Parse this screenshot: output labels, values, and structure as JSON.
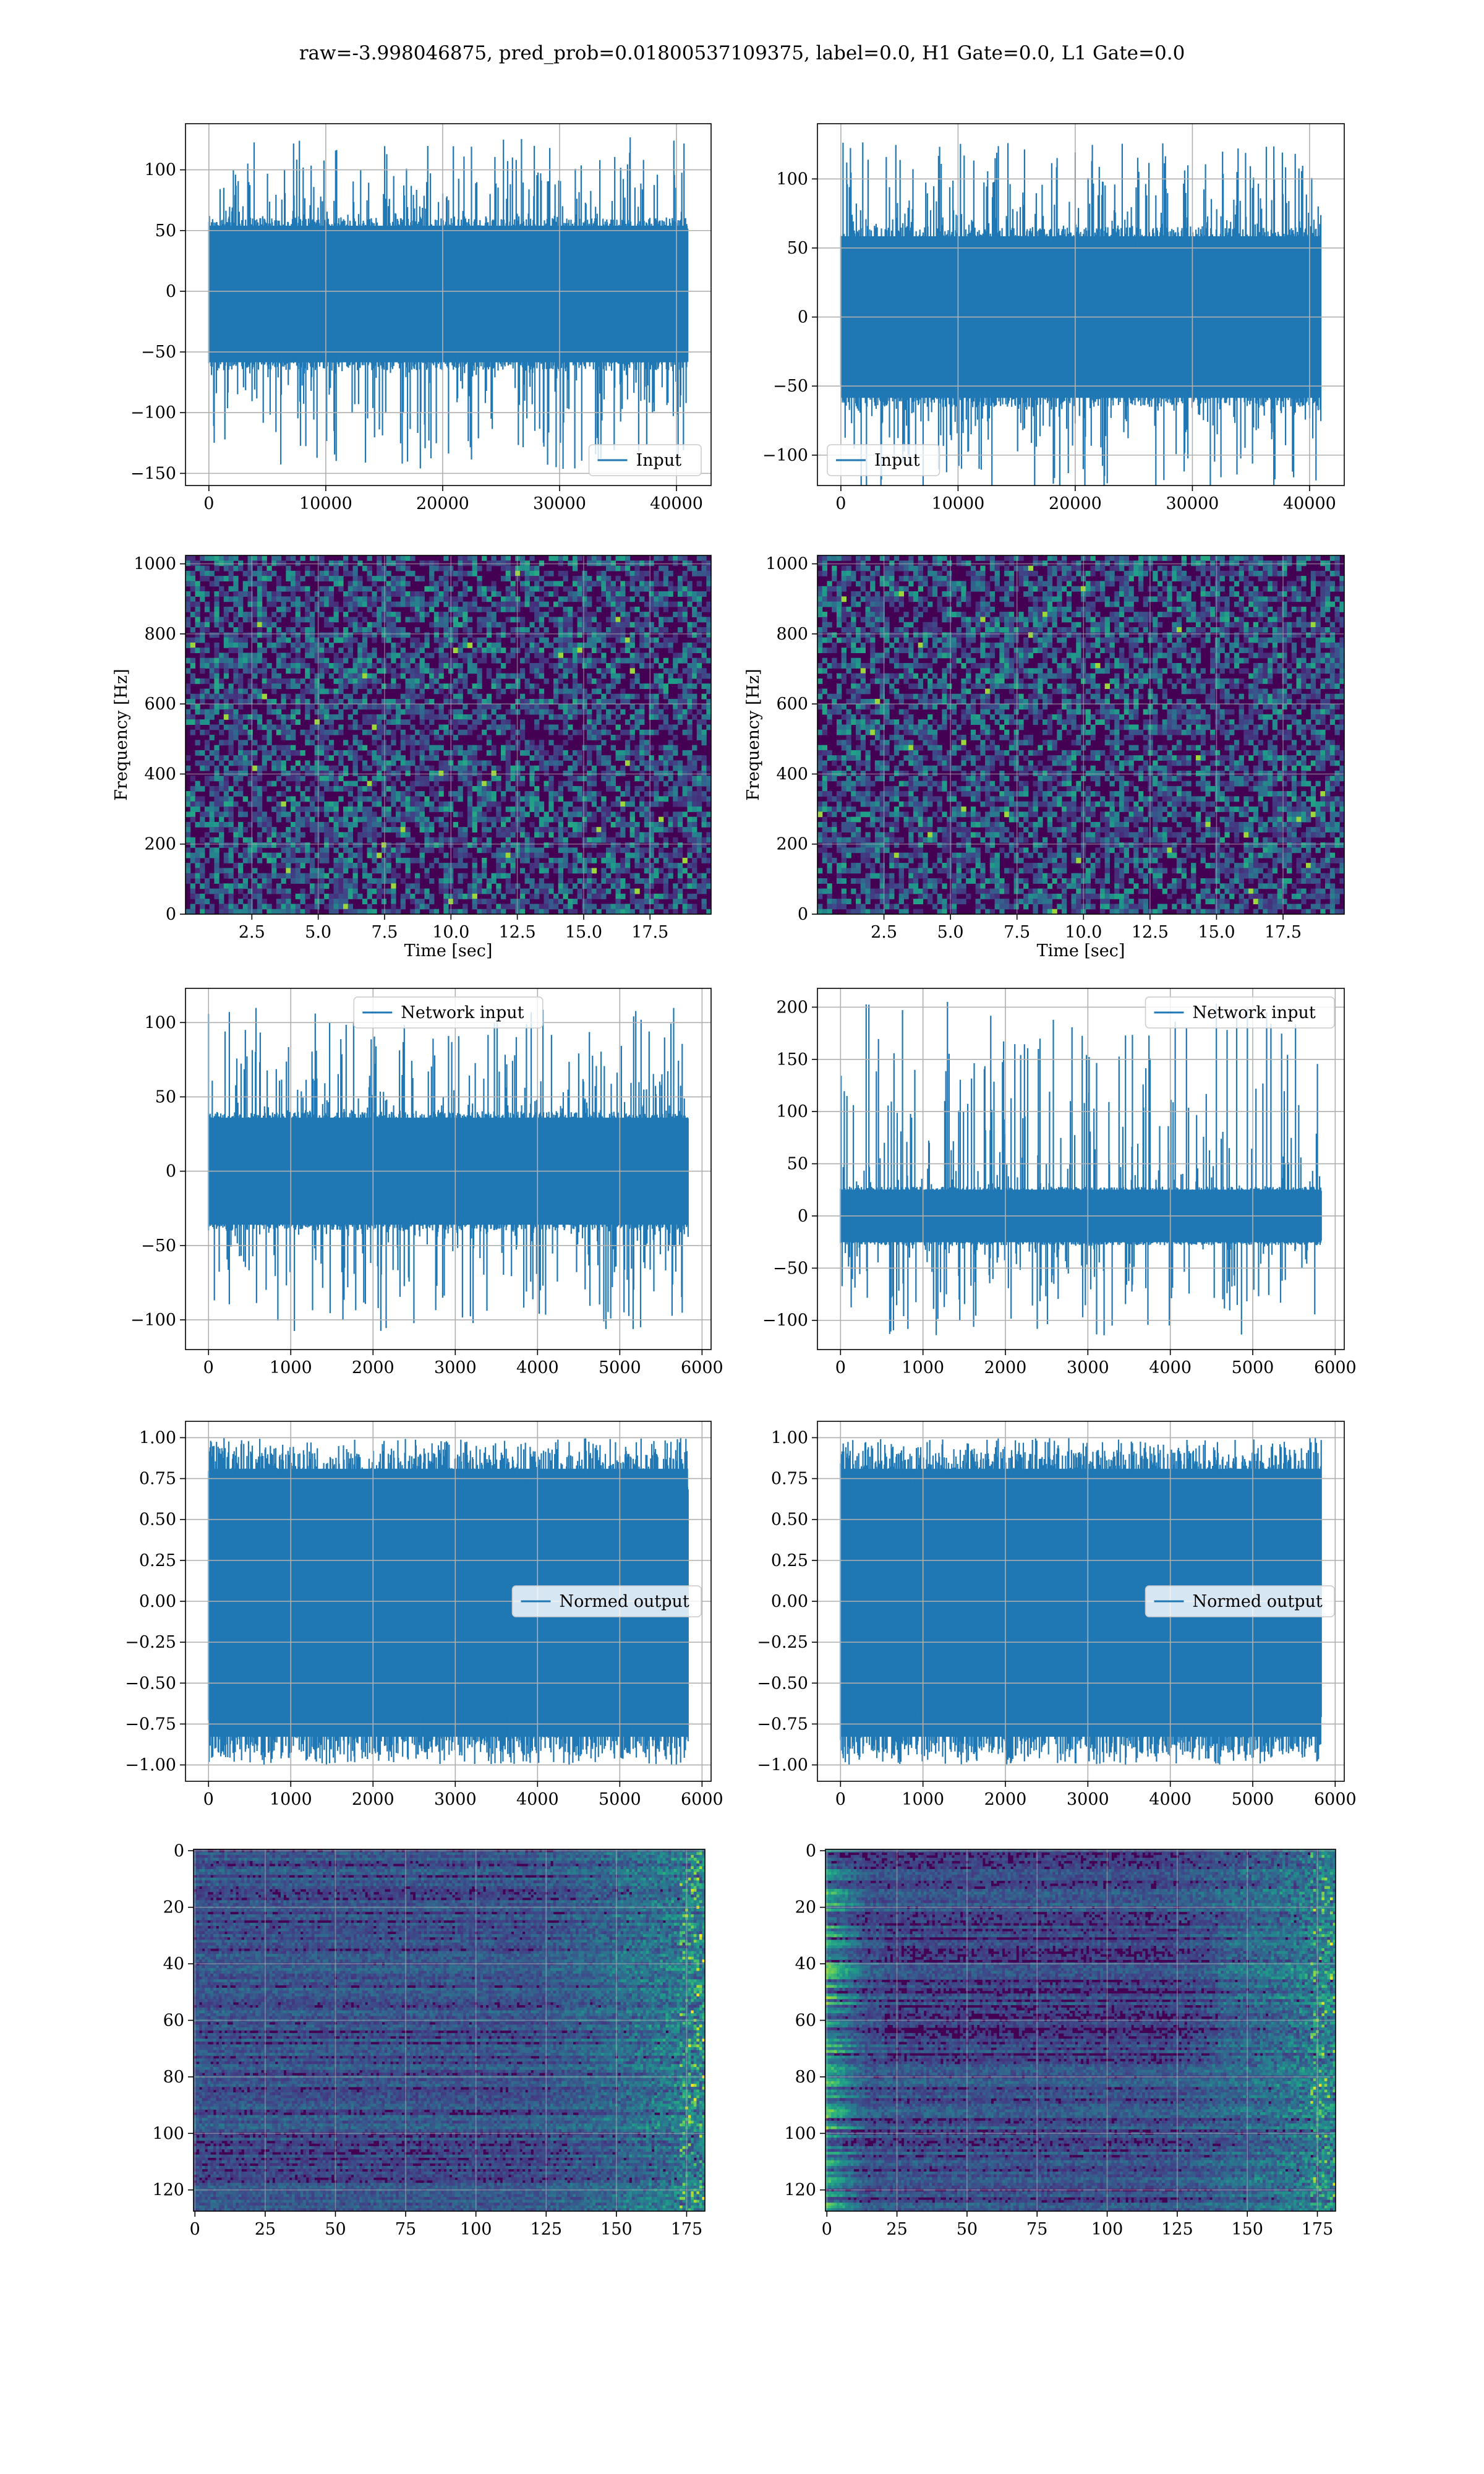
{
  "figure": {
    "title": "raw=-3.998046875, pred_prob=0.01800537109375, label=0.0, H1 Gate=0.0, L1 Gate=0.0"
  },
  "colors": {
    "line": "#1f77b4",
    "grid": "#b0b0b0",
    "viridis_dark": "#440154",
    "viridis_mid": "#21908d",
    "viridis_bright": "#fde725"
  },
  "chart_data": [
    {
      "id": "r1l",
      "type": "line",
      "title": "",
      "xlabel": "",
      "ylabel": "",
      "xlim": [
        -2000,
        42960
      ],
      "ylim": [
        -160,
        138
      ],
      "xticks": [
        0,
        10000,
        20000,
        30000,
        40000
      ],
      "yticks": [
        -150,
        -100,
        -50,
        0,
        50,
        100
      ],
      "grid": true,
      "legend": "lower-right",
      "series": [
        {
          "name": "Input",
          "n_points": 40960,
          "band": [
            -65,
            60
          ],
          "spike_max": 127,
          "spike_min": -148
        }
      ]
    },
    {
      "id": "r1r",
      "type": "line",
      "title": "",
      "xlabel": "",
      "ylabel": "",
      "xlim": [
        -2000,
        42960
      ],
      "ylim": [
        -122,
        140
      ],
      "xticks": [
        0,
        10000,
        20000,
        30000,
        40000
      ],
      "yticks": [
        -100,
        -50,
        0,
        50,
        100
      ],
      "grid": true,
      "legend": "lower-left",
      "series": [
        {
          "name": "Input",
          "n_points": 40960,
          "band": [
            -65,
            65
          ],
          "spike_max": 127,
          "spike_min": -128
        }
      ]
    },
    {
      "id": "r2l",
      "type": "heatmap",
      "title": "",
      "xlabel": "Time [sec]",
      "ylabel": "Frequency [Hz]",
      "xlim": [
        0,
        19.8
      ],
      "ylim": [
        0,
        1024
      ],
      "xticks": [
        2.5,
        5.0,
        7.5,
        10.0,
        12.5,
        15.0,
        17.5
      ],
      "yticks": [
        0,
        200,
        400,
        600,
        800,
        1000
      ],
      "grid": true,
      "colormap": "viridis",
      "dark_band_hz": 500
    },
    {
      "id": "r2r",
      "type": "heatmap",
      "title": "",
      "xlabel": "Time [sec]",
      "ylabel": "Frequency [Hz]",
      "xlim": [
        0,
        19.8
      ],
      "ylim": [
        0,
        1024
      ],
      "xticks": [
        2.5,
        5.0,
        7.5,
        10.0,
        12.5,
        15.0,
        17.5
      ],
      "yticks": [
        0,
        200,
        400,
        600,
        800,
        1000
      ],
      "grid": true,
      "colormap": "viridis",
      "dark_band_hz": 500
    },
    {
      "id": "r3l",
      "type": "line",
      "title": "",
      "xlabel": "",
      "ylabel": "",
      "xlim": [
        -280,
        6110
      ],
      "ylim": [
        -120,
        123
      ],
      "xticks": [
        0,
        1000,
        2000,
        3000,
        4000,
        5000,
        6000
      ],
      "yticks": [
        -100,
        -50,
        0,
        50,
        100
      ],
      "grid": true,
      "legend": "upper-center",
      "series": [
        {
          "name": "Network input",
          "n_points": 5830,
          "band": [
            -40,
            40
          ],
          "spike_max": 110,
          "spike_min": -108
        }
      ]
    },
    {
      "id": "r3r",
      "type": "line",
      "title": "",
      "xlabel": "",
      "ylabel": "",
      "xlim": [
        -280,
        6110
      ],
      "ylim": [
        -128,
        218
      ],
      "xticks": [
        0,
        1000,
        2000,
        3000,
        4000,
        5000,
        6000
      ],
      "yticks": [
        -100,
        -50,
        0,
        50,
        100,
        150,
        200
      ],
      "grid": true,
      "legend": "upper-right",
      "series": [
        {
          "name": "Network input",
          "n_points": 5830,
          "band": [
            -28,
            28
          ],
          "spike_max": 207,
          "spike_min": -116
        }
      ]
    },
    {
      "id": "r4l",
      "type": "line",
      "title": "",
      "xlabel": "",
      "ylabel": "",
      "xlim": [
        -280,
        6110
      ],
      "ylim": [
        -1.1,
        1.1
      ],
      "xticks": [
        0,
        1000,
        2000,
        3000,
        4000,
        5000,
        6000
      ],
      "yticks": [
        -1.0,
        -0.75,
        -0.5,
        -0.25,
        0.0,
        0.25,
        0.5,
        0.75,
        1.0
      ],
      "grid": true,
      "legend": "center-right",
      "series": [
        {
          "name": "Normed output",
          "n_points": 5830,
          "band": [
            -0.92,
            0.9
          ],
          "spike_max": 1.0,
          "spike_min": -1.0
        }
      ]
    },
    {
      "id": "r4r",
      "type": "line",
      "title": "",
      "xlabel": "",
      "ylabel": "",
      "xlim": [
        -280,
        6110
      ],
      "ylim": [
        -1.1,
        1.1
      ],
      "xticks": [
        0,
        1000,
        2000,
        3000,
        4000,
        5000,
        6000
      ],
      "yticks": [
        -1.0,
        -0.75,
        -0.5,
        -0.25,
        0.0,
        0.25,
        0.5,
        0.75,
        1.0
      ],
      "grid": true,
      "legend": "center-right",
      "series": [
        {
          "name": "Normed output",
          "n_points": 5830,
          "band": [
            -0.92,
            0.9
          ],
          "spike_max": 1.0,
          "spike_min": -1.0
        }
      ]
    },
    {
      "id": "r5l",
      "type": "heatmap",
      "title": "",
      "xlabel": "",
      "ylabel": "",
      "xlim": [
        -0.5,
        181.5
      ],
      "ylim": [
        127.5,
        -0.5
      ],
      "xticks": [
        0,
        25,
        50,
        75,
        100,
        125,
        150,
        175
      ],
      "yticks": [
        0,
        20,
        40,
        60,
        80,
        100,
        120
      ],
      "grid": true,
      "colormap": "viridis",
      "n_rows": 128,
      "n_cols": 182
    },
    {
      "id": "r5r",
      "type": "heatmap",
      "title": "",
      "xlabel": "",
      "ylabel": "",
      "xlim": [
        -0.5,
        181.5
      ],
      "ylim": [
        127.5,
        -0.5
      ],
      "xticks": [
        0,
        25,
        50,
        75,
        100,
        125,
        150,
        175
      ],
      "yticks": [
        0,
        20,
        40,
        60,
        80,
        100,
        120
      ],
      "grid": true,
      "colormap": "viridis",
      "n_rows": 128,
      "n_cols": 182
    }
  ]
}
